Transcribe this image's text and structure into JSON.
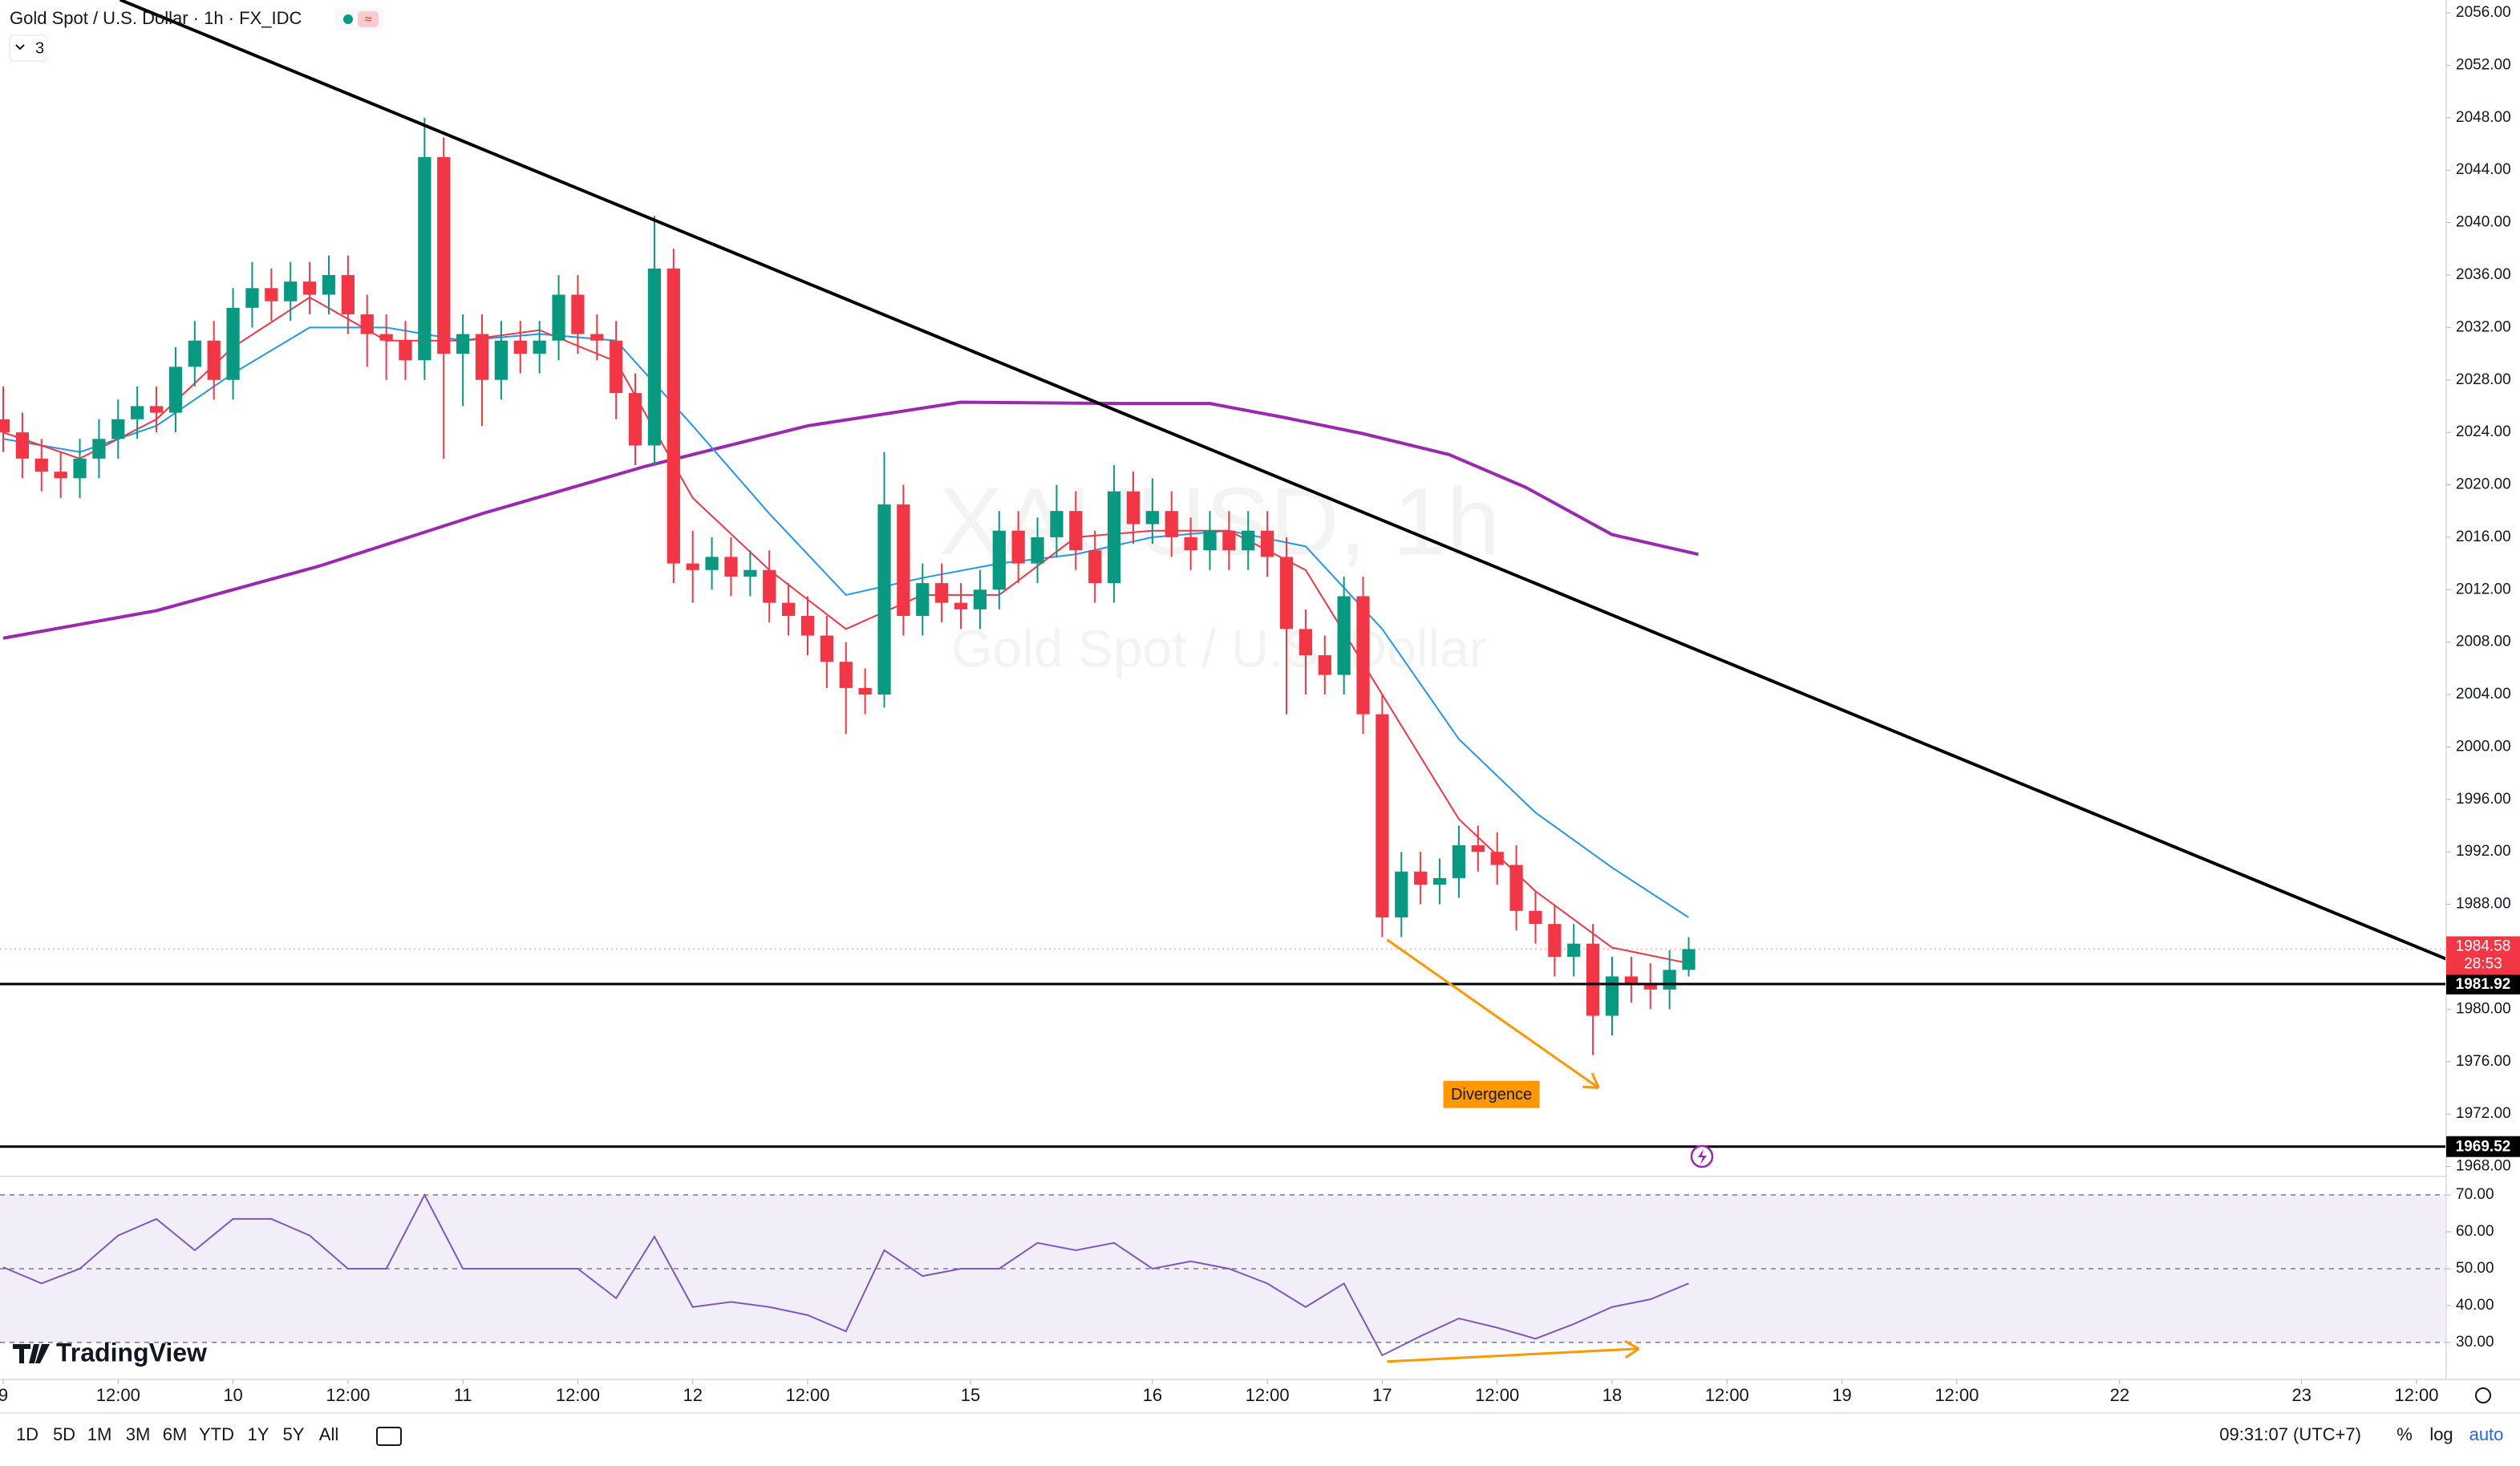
{
  "header": {
    "title": "Gold Spot / U.S. Dollar · 1h · FX_IDC",
    "indicators_count": "3"
  },
  "watermark": {
    "symbol": "XAUUSD, 1h",
    "name": "Gold Spot / U.S. Dollar"
  },
  "branding": "TradingView",
  "toolbar": {
    "ranges": [
      "1D",
      "5D",
      "1M",
      "3M",
      "6M",
      "YTD",
      "1Y",
      "5Y",
      "All"
    ],
    "clock": "09:31:07 (UTC+7)",
    "percent": "%",
    "log": "log",
    "auto": "auto"
  },
  "chart_data": [
    {
      "type": "candlestick",
      "up_color": "#089981",
      "down_color": "#f23645",
      "xlim": [
        -0.335,
        255.1
      ],
      "ylim": [
        1967.3,
        2056.98
      ],
      "x": [
        0,
        2,
        4,
        6,
        8,
        10,
        12,
        14,
        16,
        18,
        20,
        22,
        24,
        26,
        28,
        30,
        32,
        34,
        36,
        38,
        40,
        42,
        44,
        46,
        48,
        50,
        52,
        54,
        56,
        58,
        60,
        62,
        64,
        66,
        68,
        70,
        72,
        74,
        76,
        78,
        80,
        82,
        84,
        86,
        88,
        90,
        92,
        94,
        96,
        98,
        100,
        102,
        104,
        106,
        108,
        110,
        112,
        114,
        116,
        118,
        120,
        122,
        124,
        126,
        128,
        130,
        132,
        134,
        136,
        138,
        140,
        142,
        144,
        146,
        148,
        150,
        152,
        154,
        156,
        158,
        160,
        162,
        164,
        166,
        168,
        170,
        172,
        174,
        176
      ],
      "open": [
        2025.0,
        2024.0,
        2022.0,
        2021.0,
        2020.5,
        2022.0,
        2023.5,
        2025.0,
        2026.0,
        2025.5,
        2029.0,
        2031.0,
        2028.0,
        2033.5,
        2035.0,
        2034.0,
        2035.5,
        2034.5,
        2036.0,
        2033.0,
        2031.5,
        2031.0,
        2029.5,
        2045.0,
        2030.0,
        2031.5,
        2028.0,
        2031.0,
        2030.0,
        2031.0,
        2034.5,
        2031.5,
        2031.0,
        2027.0,
        2023.0,
        2036.5,
        2014.0,
        2013.5,
        2014.5,
        2013.0,
        2013.5,
        2011.0,
        2010.0,
        2008.5,
        2006.5,
        2004.5,
        2004.0,
        2018.5,
        2010.0,
        2012.5,
        2011.0,
        2010.5,
        2012.0,
        2016.5,
        2014.0,
        2016.0,
        2018.0,
        2015.0,
        2012.5,
        2019.5,
        2017.0,
        2018.0,
        2016.0,
        2015.0,
        2016.5,
        2015.0,
        2016.5,
        2014.5,
        2009.0,
        2007.0,
        2005.5,
        2011.5,
        2002.5,
        1987.0,
        1990.5,
        1989.5,
        1990.0,
        1992.5,
        1992.0,
        1991.0,
        1987.5,
        1986.5,
        1984.0,
        1985.0,
        1979.5,
        1982.5,
        1982.0,
        1981.5,
        1983.0
      ],
      "high": [
        2027.5,
        2025.5,
        2023.5,
        2022.5,
        2023.5,
        2025,
        2026.5,
        2027.5,
        2027.5,
        2030.5,
        2032.5,
        2032.5,
        2035,
        2037,
        2036.5,
        2037,
        2037,
        2037.5,
        2037.5,
        2034.5,
        2033,
        2032.5,
        2048,
        2046.5,
        2033,
        2033,
        2032.5,
        2032.5,
        2032.5,
        2036,
        2036,
        2033,
        2032.5,
        2028.5,
        2040.5,
        2038,
        2016.5,
        2016,
        2016,
        2015,
        2015,
        2012.5,
        2011.5,
        2010,
        2008,
        2006,
        2022.5,
        2020,
        2014,
        2014,
        2012.5,
        2013.5,
        2018,
        2018,
        2017.5,
        2020,
        2019.5,
        2016.5,
        2021.5,
        2021,
        2020.5,
        2019.5,
        2017.5,
        2018,
        2018,
        2018,
        2018,
        2016,
        2010.5,
        2008.5,
        2013,
        2013,
        2004,
        1992,
        1992,
        1991.5,
        1994,
        1994,
        1993.5,
        1992.5,
        1989,
        1988,
        1986.5,
        1986.5,
        1984,
        1984,
        1983.5,
        1984.5,
        1985.5
      ],
      "low": [
        2022.5,
        2020.5,
        2019.5,
        2019,
        2019,
        2020.5,
        2022,
        2023.5,
        2024,
        2024,
        2027.5,
        2026.5,
        2026.5,
        2032,
        2032.5,
        2032.5,
        2033,
        2033,
        2031.5,
        2029,
        2028,
        2028,
        2028,
        2022,
        2026,
        2024.5,
        2026.5,
        2028.5,
        2028.5,
        2029.5,
        2030,
        2029.5,
        2025,
        2021.5,
        2021.5,
        2012.5,
        2011,
        2012,
        2011.5,
        2011.5,
        2009.5,
        2008.5,
        2007,
        2004.5,
        2001,
        2002.5,
        2003,
        2008.5,
        2008.5,
        2009.5,
        2009,
        2009,
        2010.5,
        2012.5,
        2012.5,
        2014.5,
        2013.5,
        2011,
        2011,
        2015.5,
        2015.5,
        2014.5,
        2013.5,
        2013.5,
        2013.5,
        2013.5,
        2013,
        2002.5,
        2004,
        2004,
        2004,
        2001,
        1985.5,
        1985.5,
        1988,
        1988,
        1988.5,
        1990.5,
        1989.5,
        1986,
        1985,
        1982.5,
        1982.5,
        1976.5,
        1978,
        1980.5,
        1980,
        1980,
        1982.5
      ],
      "close": [
        2024.0,
        2022.0,
        2021.0,
        2020.5,
        2022.0,
        2023.5,
        2025.0,
        2026.0,
        2025.5,
        2029.0,
        2031.0,
        2028.0,
        2033.5,
        2035.0,
        2034.0,
        2035.5,
        2034.5,
        2036.0,
        2033.0,
        2031.5,
        2031.0,
        2029.5,
        2045.0,
        2030.0,
        2031.5,
        2028.0,
        2031.0,
        2030.0,
        2031.0,
        2034.5,
        2031.5,
        2031.0,
        2027.0,
        2023.0,
        2036.5,
        2014.0,
        2013.5,
        2014.5,
        2013.0,
        2013.5,
        2011.0,
        2010.0,
        2008.5,
        2006.5,
        2004.5,
        2004.0,
        2018.5,
        2010.0,
        2012.5,
        2011.0,
        2010.5,
        2012.0,
        2016.5,
        2014.0,
        2016.0,
        2018.0,
        2015.0,
        2012.5,
        2019.5,
        2017.0,
        2018.0,
        2016.0,
        2015.0,
        2016.5,
        2015.0,
        2016.5,
        2014.5,
        2009.0,
        2007.0,
        2005.5,
        2011.5,
        2002.5,
        1987.0,
        1990.5,
        1989.5,
        1990.0,
        1992.5,
        1992.0,
        1991.0,
        1987.5,
        1986.5,
        1984.0,
        1985.0,
        1979.5,
        1982.5,
        1982.0,
        1981.5,
        1983.0,
        1984.58
      ],
      "lines": [
        {
          "color": "#9c27b0",
          "width": 4,
          "x": [
            0,
            16,
            33,
            50,
            67,
            84,
            100,
            117,
            126,
            134,
            142,
            151,
            159,
            168,
            177
          ],
          "values": [
            2008.3,
            2010.4,
            2013.8,
            2017.8,
            2021.4,
            2024.5,
            2026.3,
            2026.2,
            2026.2,
            2025.1,
            2023.9,
            2022.3,
            2019.8,
            2016.2,
            2014.7
          ]
        },
        {
          "color": "#2196f3",
          "width": 2,
          "x": [
            0,
            8,
            16,
            24,
            32,
            40,
            48,
            56,
            64,
            72,
            80,
            88,
            96,
            104,
            112,
            120,
            128,
            136,
            144,
            152,
            160,
            168,
            176
          ],
          "values": [
            2023.5,
            2022.5,
            2024.5,
            2028.5,
            2032,
            2032,
            2031,
            2031.5,
            2031,
            2024.5,
            2017.8,
            2011.6,
            2012.9,
            2014,
            2014.7,
            2016,
            2016.5,
            2015.3,
            2009,
            2000.6,
            1995,
            1990.8,
            1987
          ]
        },
        {
          "color": "#f23645",
          "width": 2,
          "x": [
            0,
            8,
            16,
            24,
            32,
            40,
            48,
            56,
            64,
            72,
            80,
            88,
            96,
            104,
            112,
            120,
            128,
            136,
            144,
            152,
            160,
            168,
            176
          ],
          "values": [
            2024,
            2022,
            2025,
            2030.5,
            2034.3,
            2031,
            2031,
            2031.8,
            2029.4,
            2019,
            2013.5,
            2009,
            2011.6,
            2011.6,
            2016,
            2016.5,
            2016.5,
            2013.5,
            2004,
            1994.5,
            1989,
            1984.7,
            1983.5
          ]
        }
      ],
      "trendlines": [
        {
          "color": "#000000",
          "x": [
            12.2,
            255.2
          ],
          "y": [
            2057,
            1983.8
          ]
        }
      ],
      "levels": [
        {
          "value": 1981.92,
          "color": "#000000"
        },
        {
          "value": 1969.52,
          "color": "#000000"
        }
      ],
      "last_price": {
        "value": 1984.58,
        "countdown": "28:53",
        "color": "#f23645"
      },
      "arrows": [
        {
          "color": "#ff9800",
          "x": [
            144.5,
            166.6
          ],
          "y": [
            1985.3,
            1974
          ]
        }
      ],
      "annotations": [
        {
          "text": "Divergence",
          "x": 155.4,
          "y": 1973.5,
          "color": "#ff9800"
        }
      ],
      "yticks": [
        {
          "value": 2056,
          "label": "2056.00"
        },
        {
          "value": 2052,
          "label": "2052.00"
        },
        {
          "value": 2048,
          "label": "2048.00"
        },
        {
          "value": 2044,
          "label": "2044.00"
        },
        {
          "value": 2040,
          "label": "2040.00"
        },
        {
          "value": 2036,
          "label": "2036.00"
        },
        {
          "value": 2032,
          "label": "2032.00"
        },
        {
          "value": 2028,
          "label": "2028.00"
        },
        {
          "value": 2024,
          "label": "2024.00"
        },
        {
          "value": 2020,
          "label": "2020.00"
        },
        {
          "value": 2016,
          "label": "2016.00"
        },
        {
          "value": 2012,
          "label": "2012.00"
        },
        {
          "value": 2008,
          "label": "2008.00"
        },
        {
          "value": 2004,
          "label": "2004.00"
        },
        {
          "value": 2000,
          "label": "2000.00"
        },
        {
          "value": 1996,
          "label": "1996.00"
        },
        {
          "value": 1992,
          "label": "1992.00"
        },
        {
          "value": 1988,
          "label": "1988.00"
        },
        {
          "value": 1984,
          "label": "1984.00"
        },
        {
          "value": 1980,
          "label": "1980.00"
        },
        {
          "value": 1976,
          "label": "1976.00"
        },
        {
          "value": 1972,
          "label": "1972.00"
        },
        {
          "value": 1968,
          "label": "1968.00"
        }
      ],
      "xticks": [
        {
          "value": 0,
          "label": "9"
        },
        {
          "value": 12,
          "label": "12:00"
        },
        {
          "value": 24,
          "label": "10"
        },
        {
          "value": 36,
          "label": "12:00"
        },
        {
          "value": 48,
          "label": "11"
        },
        {
          "value": 60,
          "label": "12:00"
        },
        {
          "value": 72,
          "label": "12"
        },
        {
          "value": 84,
          "label": "12:00"
        },
        {
          "value": 101,
          "label": "15"
        },
        {
          "value": 120,
          "label": "16"
        },
        {
          "value": 132,
          "label": "12:00"
        },
        {
          "value": 144,
          "label": "17"
        },
        {
          "value": 156,
          "label": "12:00"
        },
        {
          "value": 168,
          "label": "18"
        },
        {
          "value": 180,
          "label": "12:00"
        },
        {
          "value": 192,
          "label": "19"
        },
        {
          "value": 204,
          "label": "12:00"
        },
        {
          "value": 221,
          "label": "22"
        },
        {
          "value": 240,
          "label": "23"
        },
        {
          "value": 252,
          "label": "12:00"
        }
      ]
    },
    {
      "type": "line",
      "color": "#7e57c2",
      "band_color": "#7e57c2",
      "band": [
        30,
        70
      ],
      "midline": 50,
      "ylim": [
        20.4,
        74.8
      ],
      "x": [
        0,
        4,
        8,
        12,
        16,
        20,
        24,
        28,
        32,
        36,
        40,
        44,
        48,
        52,
        56,
        60,
        64,
        68,
        72,
        76,
        80,
        84,
        88,
        92,
        96,
        100,
        104,
        108,
        112,
        116,
        120,
        124,
        128,
        132,
        136,
        140,
        144,
        148,
        152,
        156,
        160,
        164,
        168,
        172,
        176
      ],
      "values": [
        50.4,
        46,
        50,
        59,
        63.5,
        55,
        63.5,
        63.5,
        59,
        50,
        50,
        70,
        50,
        50,
        50,
        50,
        42,
        58.7,
        39.6,
        41,
        39.6,
        37.4,
        33,
        55,
        48,
        50,
        50,
        57,
        55,
        57,
        50,
        52,
        50,
        46,
        39.6,
        46,
        26.5,
        31.7,
        36.5,
        34,
        31,
        35,
        39.6,
        41.7,
        46
      ],
      "arrows": [
        {
          "color": "#ff9800",
          "x": [
            144.5,
            170.8
          ],
          "y": [
            24.8,
            28.3
          ]
        }
      ],
      "yticks": [
        {
          "value": 70,
          "label": "70.00"
        },
        {
          "value": 60,
          "label": "60.00"
        },
        {
          "value": 50,
          "label": "50.00"
        },
        {
          "value": 40,
          "label": "40.00"
        },
        {
          "value": 30,
          "label": "30.00"
        }
      ]
    }
  ]
}
